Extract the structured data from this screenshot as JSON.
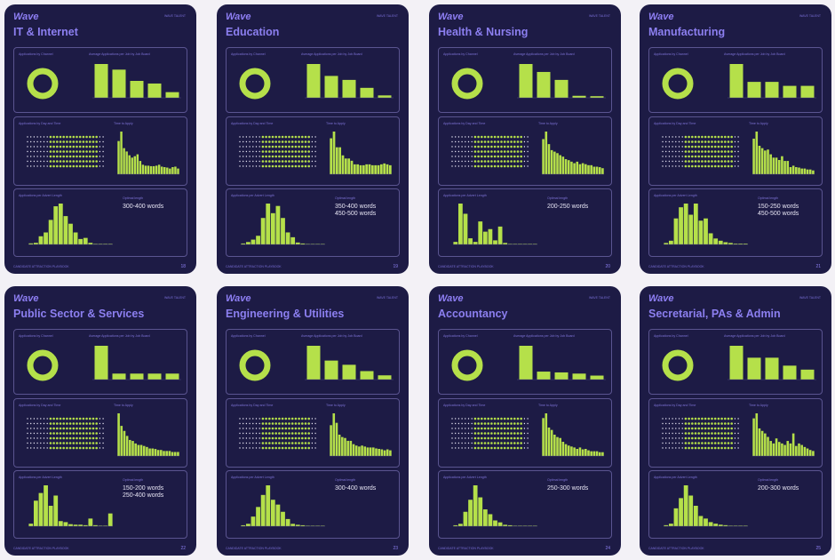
{
  "common": {
    "logo": "Wave",
    "header": "WAVE TALENT",
    "footer": "CANDIDATE ATTRACTION PLAYBOOK",
    "channel_label": "Applications by Channel",
    "board_label": "Average Applications per Job by Job Board",
    "daytime_label": "Applications by Day and Time",
    "tta_label": "Time to Apply",
    "length_label": "Applications per Advert Length",
    "optimal_label": "Optimal length",
    "accent": "#b5e04a",
    "bg": "#1d1b45"
  },
  "pages": [
    {
      "title": "IT & Internet",
      "page": "18",
      "optimal": [
        "300-400 words"
      ],
      "boards": [
        90,
        75,
        45,
        38,
        15
      ],
      "tta": [
        70,
        90,
        55,
        48,
        40,
        35,
        38,
        42,
        28,
        20,
        18,
        18,
        17,
        17,
        18,
        20,
        16,
        15,
        14,
        12,
        15,
        16,
        12
      ],
      "length": [
        2,
        3,
        15,
        22,
        45,
        70,
        75,
        52,
        38,
        22,
        10,
        12,
        3,
        1,
        1,
        1,
        1
      ]
    },
    {
      "title": "Education",
      "page": "19",
      "optimal": [
        "350-400 words",
        "450-500 words"
      ],
      "boards": [
        85,
        55,
        45,
        25,
        6
      ],
      "tta": [
        80,
        95,
        60,
        60,
        42,
        35,
        35,
        30,
        22,
        22,
        20,
        20,
        22,
        22,
        20,
        20,
        20,
        22,
        24,
        22,
        20
      ],
      "length": [
        2,
        5,
        10,
        18,
        55,
        85,
        65,
        80,
        55,
        25,
        15,
        4,
        2,
        1,
        1,
        1,
        1
      ]
    },
    {
      "title": "Health & Nursing",
      "page": "20",
      "optimal": [
        "200-250 words"
      ],
      "boards": [
        85,
        65,
        45,
        5,
        4
      ],
      "tta": [
        70,
        85,
        60,
        48,
        45,
        42,
        38,
        35,
        30,
        28,
        25,
        22,
        25,
        20,
        22,
        20,
        18,
        18,
        15,
        15,
        14,
        12
      ],
      "length": [
        5,
        80,
        60,
        12,
        5,
        45,
        25,
        30,
        8,
        35,
        3,
        1,
        1,
        1,
        1,
        1,
        1
      ]
    },
    {
      "title": "Manufacturing",
      "page": "21",
      "optimal": [
        "150-250 words",
        "450-500 words"
      ],
      "boards": [
        85,
        40,
        40,
        30,
        30
      ],
      "tta": [
        75,
        90,
        60,
        55,
        50,
        52,
        42,
        35,
        35,
        30,
        38,
        28,
        28,
        15,
        18,
        15,
        14,
        12,
        12,
        10,
        10,
        8
      ],
      "length": [
        2,
        5,
        35,
        50,
        55,
        40,
        55,
        32,
        35,
        15,
        8,
        5,
        3,
        2,
        1,
        1,
        1
      ]
    },
    {
      "title": "Public Sector & Services",
      "page": "22",
      "optimal": [
        "150-200 words",
        "250-400 words"
      ],
      "boards": [
        85,
        15,
        15,
        15,
        15
      ],
      "tta": [
        85,
        60,
        50,
        40,
        32,
        30,
        25,
        22,
        22,
        20,
        18,
        15,
        15,
        14,
        12,
        12,
        10,
        10,
        10,
        8,
        8,
        8
      ],
      "length": [
        5,
        50,
        65,
        80,
        40,
        60,
        10,
        8,
        4,
        3,
        3,
        2,
        15,
        2,
        1,
        1,
        25
      ]
    },
    {
      "title": "Engineering & Utilities",
      "page": "23",
      "optimal": [
        "300-400 words"
      ],
      "boards": [
        80,
        45,
        35,
        20,
        10
      ],
      "tta": [
        65,
        90,
        70,
        45,
        40,
        38,
        32,
        32,
        25,
        22,
        20,
        22,
        20,
        18,
        18,
        18,
        16,
        15,
        14,
        12,
        14,
        12
      ],
      "length": [
        2,
        5,
        20,
        40,
        65,
        85,
        55,
        45,
        30,
        15,
        5,
        3,
        2,
        1,
        1,
        1,
        1
      ]
    },
    {
      "title": "Accountancy",
      "page": "24",
      "optimal": [
        "250-300 words"
      ],
      "boards": [
        85,
        20,
        18,
        15,
        10
      ],
      "tta": [
        80,
        90,
        60,
        55,
        45,
        40,
        38,
        30,
        25,
        22,
        20,
        18,
        15,
        18,
        14,
        15,
        12,
        10,
        10,
        10,
        8,
        8
      ],
      "length": [
        2,
        5,
        30,
        55,
        85,
        60,
        35,
        25,
        12,
        8,
        3,
        2,
        1,
        1,
        1,
        1,
        1
      ]
    },
    {
      "title": "Secretarial, PAs & Admin",
      "page": "25",
      "optimal": [
        "200-300 words"
      ],
      "boards": [
        85,
        55,
        55,
        35,
        25
      ],
      "tta": [
        75,
        85,
        55,
        50,
        45,
        38,
        30,
        25,
        35,
        28,
        25,
        22,
        30,
        25,
        45,
        20,
        25,
        22,
        18,
        15,
        12,
        10
      ],
      "length": [
        2,
        5,
        35,
        55,
        80,
        60,
        40,
        20,
        15,
        8,
        5,
        3,
        2,
        1,
        1,
        1,
        1
      ]
    }
  ]
}
